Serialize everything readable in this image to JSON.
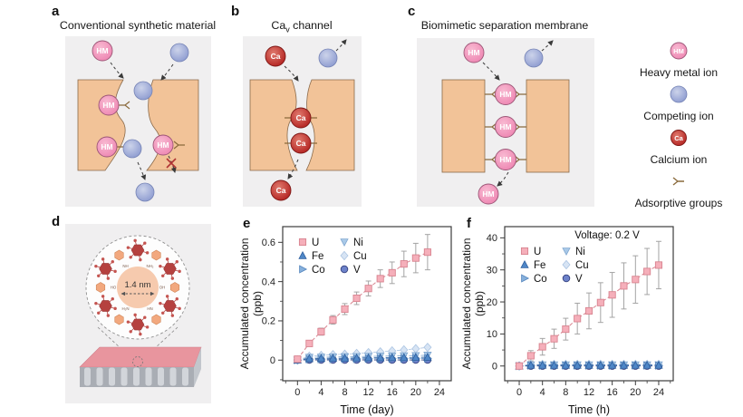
{
  "figure": {
    "background": "#ffffff",
    "panel_bg": "#f0eff0",
    "material_orange": "#f2c398"
  },
  "panels": {
    "a": {
      "label": "a",
      "title": "Conventional synthetic material"
    },
    "b": {
      "label": "b",
      "title_pre": "Ca",
      "title_sub": "v",
      "title_post": " channel"
    },
    "c": {
      "label": "c",
      "title": "Biomimetic separation membrane"
    },
    "d": {
      "label": "d",
      "pore_label": "1.4 nm",
      "chem_labels": [
        "NH₂",
        "OH",
        "HN",
        "H₂N",
        "HO",
        "NH"
      ]
    },
    "e": {
      "label": "e"
    },
    "f": {
      "label": "f"
    }
  },
  "ions": {
    "hm": "HM",
    "ca": "Ca"
  },
  "side_legend": {
    "items": [
      {
        "icon": "heavy-metal-ion-icon",
        "label": "Heavy metal ion"
      },
      {
        "icon": "competing-ion-icon",
        "label": "Competing ion"
      },
      {
        "icon": "calcium-ion-icon",
        "label": "Calcium ion"
      },
      {
        "icon": "adsorptive-groups-icon",
        "label": "Adsorptive groups"
      }
    ]
  },
  "chart_data": [
    {
      "id": "e",
      "type": "scatter",
      "annotation": "",
      "xlabel": "Time (day)",
      "ylabel_lines": [
        "Accumulated concentration",
        "(ppb)"
      ],
      "xlim": [
        -2.5,
        26
      ],
      "ylim": [
        -0.105,
        0.68
      ],
      "xticks": [
        0,
        4,
        8,
        12,
        16,
        20,
        24
      ],
      "xtick_labels": [
        "0",
        "4",
        "8",
        "12",
        "16",
        "20",
        "24"
      ],
      "yticks": [
        0,
        0.2,
        0.4,
        0.6
      ],
      "ytick_labels": [
        "0",
        "0.2",
        "0.4",
        "0.6"
      ],
      "x": [
        0,
        2,
        4,
        6,
        8,
        10,
        12,
        14,
        16,
        18,
        20,
        22
      ],
      "series": [
        {
          "name": "U",
          "marker": "square",
          "color": "#f5afba",
          "edge": "#d8838f",
          "values": [
            0.005,
            0.085,
            0.145,
            0.205,
            0.26,
            0.315,
            0.365,
            0.415,
            0.445,
            0.49,
            0.52,
            0.55
          ],
          "errors": [
            0.008,
            0.012,
            0.018,
            0.022,
            0.028,
            0.032,
            0.038,
            0.045,
            0.055,
            0.065,
            0.075,
            0.09
          ]
        },
        {
          "name": "Fe",
          "marker": "triangle-up",
          "color": "#4f87c7",
          "edge": "#2e5f9e",
          "values": [
            0,
            0.008,
            0.009,
            0.01,
            0.01,
            0.011,
            0.012,
            0.012,
            0.013,
            0.013,
            0.014,
            0.015
          ]
        },
        {
          "name": "Co",
          "marker": "triangle-right",
          "color": "#86b0dc",
          "edge": "#5585bd",
          "values": [
            0,
            0.004,
            0.005,
            0.005,
            0.006,
            0.006,
            0.007,
            0.007,
            0.008,
            0.008,
            0.009,
            0.009
          ]
        },
        {
          "name": "Ni",
          "marker": "triangle-down",
          "color": "#a9c9e8",
          "edge": "#7fa6cf",
          "values": [
            0,
            0.014,
            0.015,
            0.016,
            0.017,
            0.018,
            0.019,
            0.02,
            0.021,
            0.022,
            0.023,
            0.025
          ]
        },
        {
          "name": "Cu",
          "marker": "diamond",
          "color": "#d7e4f4",
          "edge": "#abc4e2",
          "values": [
            0,
            0.02,
            0.024,
            0.028,
            0.03,
            0.034,
            0.038,
            0.042,
            0.047,
            0.052,
            0.058,
            0.065
          ]
        },
        {
          "name": "V",
          "marker": "circle",
          "color": "#6d82ca",
          "edge": "#35417e",
          "values": [
            0,
            0.001,
            0.001,
            0.001,
            0.001,
            0.001,
            0.001,
            0.001,
            0.001,
            0.001,
            0.001,
            0.001
          ]
        }
      ]
    },
    {
      "id": "f",
      "type": "scatter",
      "annotation": "Voltage: 0.2 V",
      "xlabel": "Time (h)",
      "ylabel_lines": [
        "Accumulated concentration",
        "(ppb)"
      ],
      "xlim": [
        -2.5,
        26.5
      ],
      "ylim": [
        -4.6,
        43.5
      ],
      "xticks": [
        0,
        4,
        8,
        12,
        16,
        20,
        24
      ],
      "xtick_labels": [
        "0",
        "4",
        "8",
        "12",
        "16",
        "20",
        "24"
      ],
      "yticks": [
        0,
        10,
        20,
        30,
        40
      ],
      "ytick_labels": [
        "0",
        "10",
        "20",
        "30",
        "40"
      ],
      "x": [
        0,
        2,
        4,
        6,
        8,
        10,
        12,
        14,
        16,
        18,
        20,
        22,
        24
      ],
      "series": [
        {
          "name": "U",
          "marker": "square",
          "color": "#f5afba",
          "edge": "#d8838f",
          "values": [
            0,
            3.2,
            6.0,
            8.5,
            11.5,
            14.8,
            17.2,
            19.8,
            22.2,
            25.0,
            27.0,
            29.5,
            31.5
          ],
          "errors": [
            0.3,
            1.6,
            2.6,
            3.0,
            3.4,
            4.8,
            5.6,
            6.2,
            7.0,
            7.2,
            7.4,
            7.2,
            7.4
          ]
        },
        {
          "name": "Fe",
          "marker": "triangle-up",
          "color": "#4f87c7",
          "edge": "#2e5f9e",
          "values": [
            0,
            0.25,
            0.25,
            0.25,
            0.25,
            0.25,
            0.25,
            0.25,
            0.25,
            0.25,
            0.25,
            0.25,
            0.25
          ]
        },
        {
          "name": "Co",
          "marker": "triangle-right",
          "color": "#86b0dc",
          "edge": "#5585bd",
          "values": [
            0,
            0.15,
            0.15,
            0.15,
            0.15,
            0.15,
            0.15,
            0.15,
            0.15,
            0.15,
            0.15,
            0.15,
            0.15
          ]
        },
        {
          "name": "Ni",
          "marker": "triangle-down",
          "color": "#a9c9e8",
          "edge": "#7fa6cf",
          "values": [
            0,
            0.35,
            0.35,
            0.35,
            0.35,
            0.35,
            0.35,
            0.35,
            0.35,
            0.35,
            0.35,
            0.35,
            0.35
          ]
        },
        {
          "name": "Cu",
          "marker": "diamond",
          "color": "#d7e4f4",
          "edge": "#abc4e2",
          "values": [
            0,
            0.5,
            0.5,
            0.5,
            0.5,
            0.5,
            0.5,
            0.5,
            0.5,
            0.5,
            0.5,
            0.5,
            0.5
          ]
        },
        {
          "name": "V",
          "marker": "circle",
          "color": "#6d82ca",
          "edge": "#35417e",
          "values": [
            0,
            0,
            0,
            0,
            0,
            0,
            0,
            0,
            0,
            0,
            0,
            0,
            0
          ]
        }
      ]
    }
  ]
}
